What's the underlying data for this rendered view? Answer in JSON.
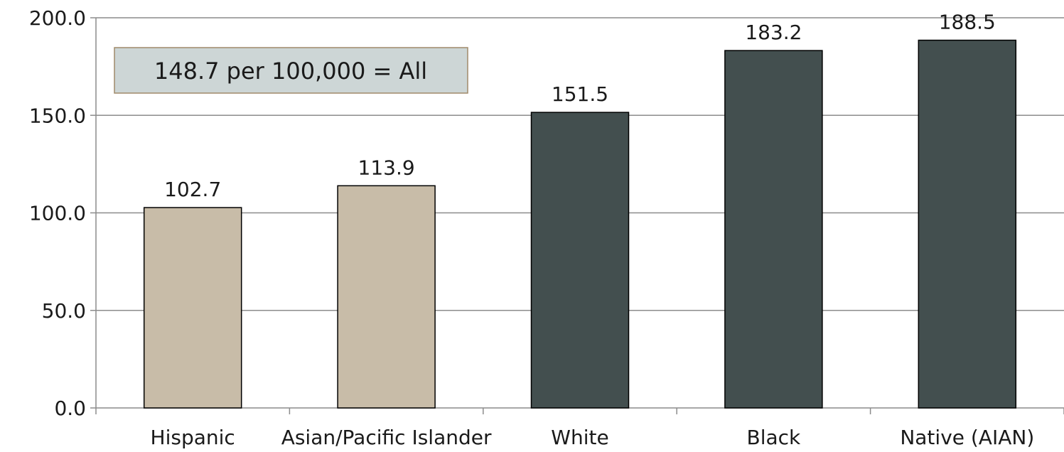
{
  "chart_data": {
    "type": "bar",
    "categories": [
      "Hispanic",
      "Asian/Pacific Islander",
      "White",
      "Black",
      "Native (AIAN)"
    ],
    "values": [
      102.7,
      113.9,
      151.5,
      183.2,
      188.5
    ],
    "value_labels": [
      "102.7",
      "113.9",
      "151.5",
      "183.2",
      "188.5"
    ],
    "bar_colors": [
      "#c8bca8",
      "#c8bca8",
      "#434f4f",
      "#434f4f",
      "#434f4f"
    ],
    "ylim": [
      0,
      200
    ],
    "yticks": [
      0,
      50,
      100,
      150,
      200
    ],
    "ytick_labels": [
      "0.0",
      "50.0",
      "100.0",
      "150.0",
      "200.0"
    ],
    "grid": true,
    "annotation": "148.7 per 100,000 = All",
    "annotation_fill": "#cdd6d6",
    "annotation_border": "#a08a6a"
  }
}
